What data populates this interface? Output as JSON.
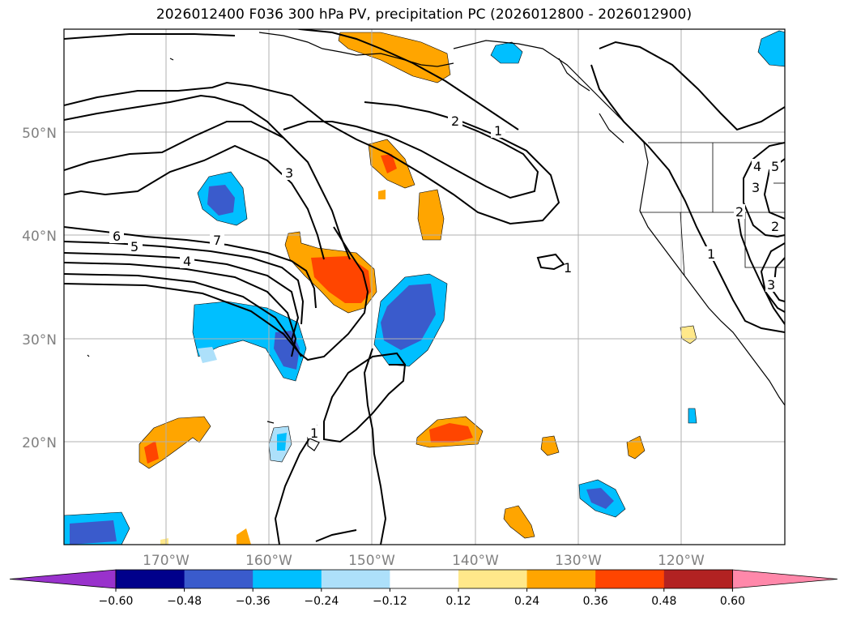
{
  "title": "2026012400 F036 300 hPa PV, precipitation PC (2026012800 - 2026012900)",
  "map": {
    "lat_labels": [
      "50°N",
      "40°N",
      "30°N",
      "20°N"
    ],
    "lon_labels": [
      "170°W",
      "160°W",
      "150°W",
      "140°W",
      "130°W",
      "120°W"
    ],
    "contour_labels": [
      "6",
      "5",
      "7",
      "4",
      "3",
      "2",
      "1",
      "1",
      "1",
      "1",
      "2",
      "3",
      "3",
      "4",
      "5",
      "2"
    ]
  },
  "colorbar": {
    "ticks": [
      "−0.60",
      "−0.48",
      "−0.36",
      "−0.24",
      "−0.12",
      "0.12",
      "0.24",
      "0.36",
      "0.48",
      "0.60"
    ],
    "colors": [
      "#9932cc",
      "#00008b",
      "#3a5bcc",
      "#00bfff",
      "#ade0fa",
      "#ffffff",
      "#ffe88a",
      "#ffa500",
      "#ff4500",
      "#b22222",
      "#ff88aa"
    ]
  }
}
